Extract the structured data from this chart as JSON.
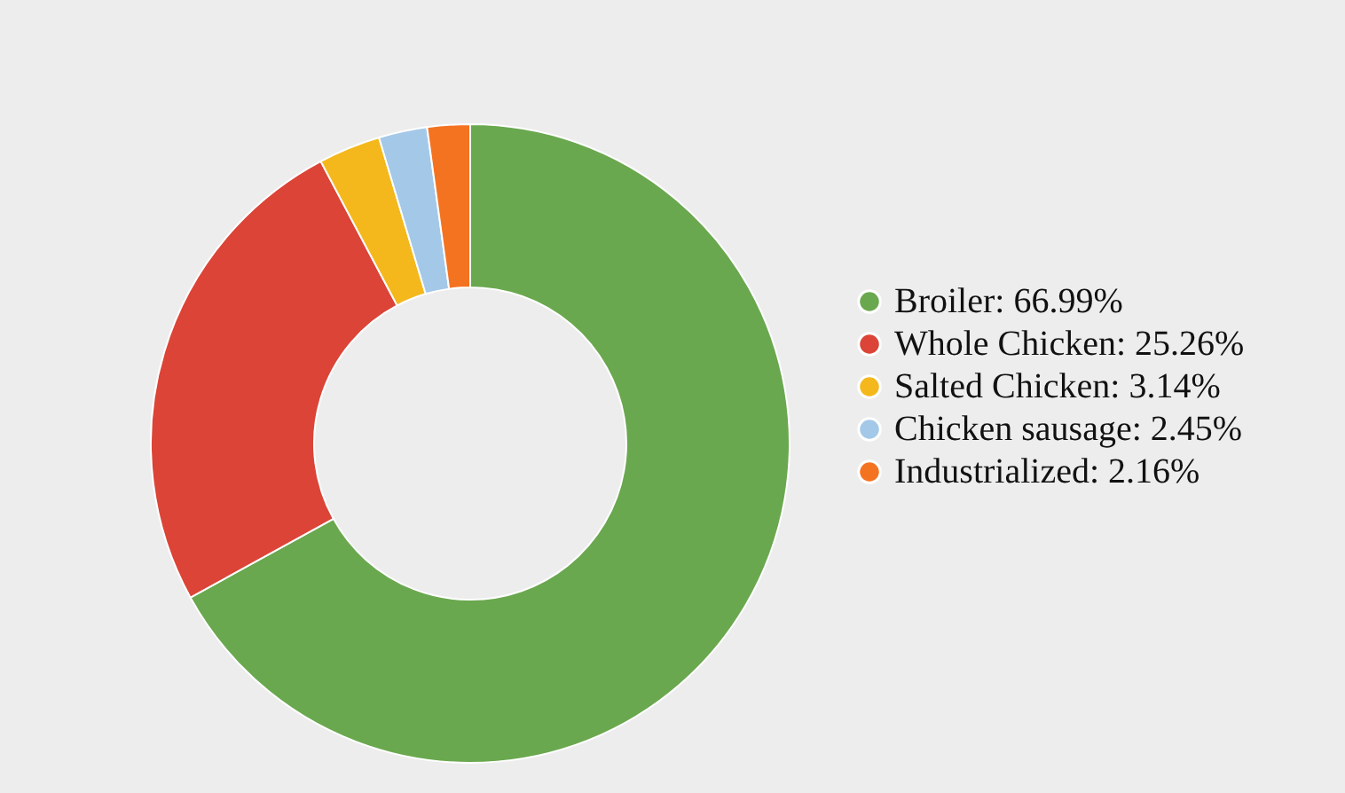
{
  "chart_data": {
    "type": "donut",
    "categories": [
      "Broiler: 66.99%",
      "Whole Chicken: 25.26%",
      "Salted Chicken: 3.14%",
      "Chicken sausage: 2.45%",
      "Industrialized: 2.16%"
    ],
    "values": [
      66.99,
      25.26,
      3.14,
      2.45,
      2.16
    ],
    "colors": [
      "#6aa84f",
      "#db4437",
      "#f4b81c",
      "#a4c8e8",
      "#f47321"
    ],
    "legend": "right"
  }
}
